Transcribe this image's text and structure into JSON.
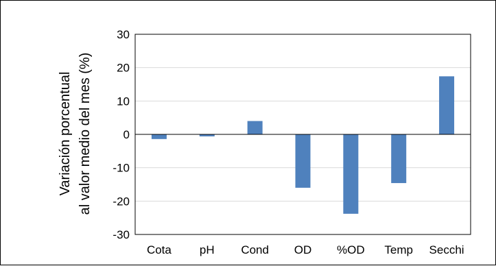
{
  "chart_data": {
    "type": "bar",
    "title": "",
    "xlabel": "",
    "ylabel_lines": [
      "Variación porcentual",
      "al valor medio del mes (%)"
    ],
    "categories": [
      "Cota",
      "pH",
      "Cond",
      "OD",
      "%OD",
      "Temp",
      "Secchi"
    ],
    "values": [
      -1.4,
      -0.6,
      4.0,
      -16.0,
      -23.8,
      -14.6,
      17.4
    ],
    "ylim": [
      -30,
      30
    ],
    "yticks": [
      30,
      20,
      10,
      0,
      -10,
      -20,
      -30
    ],
    "grid": true,
    "legend": "none",
    "bar_color": "#4f81bd",
    "grid_color": "#d9d9d9",
    "axis_color": "#000000"
  }
}
